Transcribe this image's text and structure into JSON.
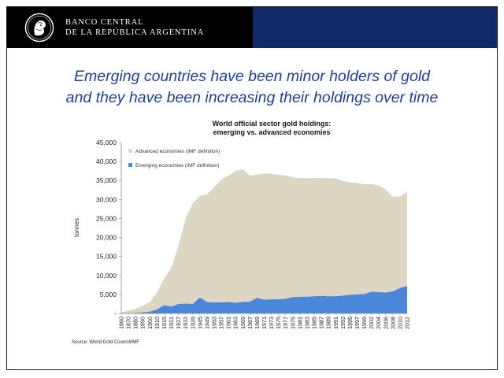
{
  "header": {
    "bank_line1": "BANCO CENTRAL",
    "bank_line2": "DE LA REPÚBLICA ARGENTINA",
    "left_color": "#000000",
    "right_color": "#102a69"
  },
  "headline": {
    "line1": "Emerging countries have been minor holders of gold",
    "line2": "and they have been increasing their holdings over time",
    "color": "#1f3f8f"
  },
  "source": "Source:  World Gold Council/IMF",
  "chart_data": {
    "type": "area",
    "title_line1": "World official sector gold holdings:",
    "title_line2": "emerging vs. advanced economies",
    "xlabel": "",
    "ylabel": "tonnes",
    "ylim": [
      0,
      45000
    ],
    "yticks": [
      0,
      5000,
      10000,
      15000,
      20000,
      25000,
      30000,
      35000,
      40000,
      45000
    ],
    "ytick_labels": [
      "-",
      "5,000",
      "10,000",
      "15,000",
      "20,000",
      "25,000",
      "30,000",
      "35,000",
      "40,000",
      "45,000"
    ],
    "xlim": [
      1860,
      2012
    ],
    "xtick_labels": [
      "1860",
      "1870",
      "1880",
      "1890",
      "1900",
      "1910",
      "1915",
      "1921",
      "1927",
      "1933",
      "1939",
      "1945",
      "1949",
      "1953",
      "1957",
      "1961",
      "1963",
      "1965",
      "1967",
      "1969",
      "1971",
      "1973",
      "1975",
      "1977",
      "1979",
      "1981",
      "1983",
      "1985",
      "1987",
      "1989",
      "1991",
      "1993",
      "1995",
      "1997",
      "1999",
      "2002",
      "2004",
      "2006",
      "2008",
      "2010",
      "2012"
    ],
    "grid": false,
    "legend_position": "top-left",
    "stacked": true,
    "x": [
      "1860",
      "1870",
      "1880",
      "1890",
      "1900",
      "1910",
      "1915",
      "1921",
      "1927",
      "1933",
      "1939",
      "1945",
      "1949",
      "1953",
      "1957",
      "1961",
      "1963",
      "1965",
      "1967",
      "1969",
      "1971",
      "1973",
      "1975",
      "1977",
      "1979",
      "1981",
      "1983",
      "1985",
      "1987",
      "1989",
      "1991",
      "1993",
      "1995",
      "1997",
      "1999",
      "2002",
      "2004",
      "2006",
      "2008",
      "2010",
      "2012"
    ],
    "series": [
      {
        "name": "Emerging economies (IMF definition)",
        "color": "#4a86d9",
        "values": [
          0,
          50,
          150,
          250,
          500,
          1000,
          2200,
          1800,
          2500,
          2600,
          2500,
          4200,
          3000,
          2900,
          2900,
          3000,
          2800,
          3000,
          3100,
          4100,
          3600,
          3700,
          3700,
          3900,
          4300,
          4400,
          4400,
          4500,
          4600,
          4500,
          4500,
          4700,
          4900,
          5000,
          5100,
          5700,
          5600,
          5500,
          5800,
          6700,
          7200
        ]
      },
      {
        "name": "Advanced economies (IMF definition)",
        "color": "#dcd6c3",
        "values": [
          300,
          700,
          1050,
          1750,
          2500,
          4500,
          7000,
          10200,
          15200,
          22400,
          26500,
          26800,
          28400,
          30300,
          32400,
          33300,
          34700,
          35000,
          33200,
          32500,
          33200,
          33100,
          32800,
          32500,
          31500,
          31300,
          31200,
          31200,
          31100,
          31100,
          31100,
          30200,
          29600,
          29400,
          28900,
          28300,
          28100,
          27200,
          24900,
          24100,
          24800
        ]
      }
    ]
  }
}
